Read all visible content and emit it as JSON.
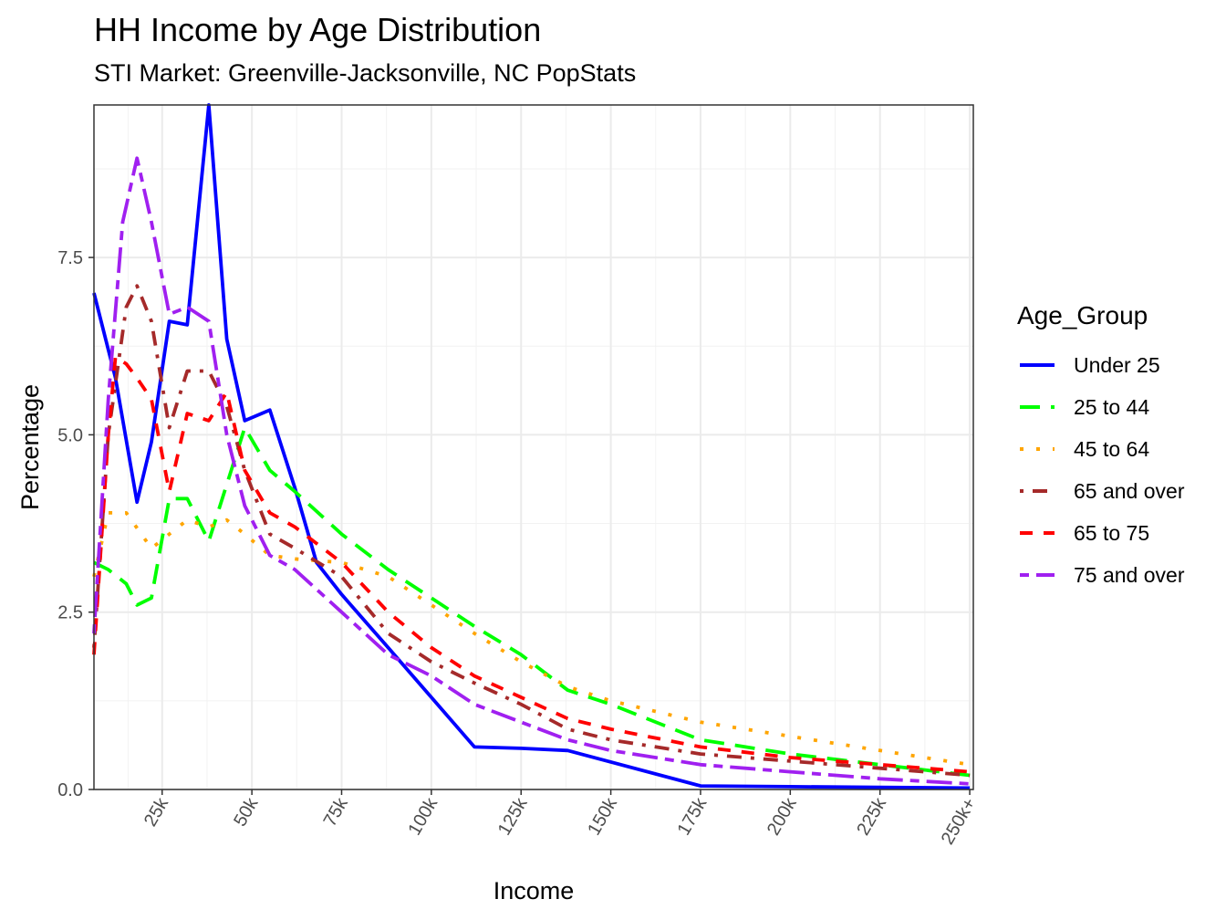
{
  "title": "HH Income by Age Distribution",
  "subtitle": "STI Market: Greenville-Jacksonville, NC PopStats",
  "chart_data": {
    "type": "line",
    "title": "HH Income by Age Distribution",
    "subtitle": "STI Market: Greenville-Jacksonville, NC PopStats",
    "xlabel": "Income",
    "ylabel": "Percentage",
    "x_ticks": [
      "25k",
      "50k",
      "75k",
      "100k",
      "125k",
      "150k",
      "175k",
      "200k",
      "225k",
      "250k+"
    ],
    "x_tick_values": [
      25,
      50,
      75,
      100,
      125,
      150,
      175,
      200,
      225,
      250
    ],
    "y_ticks": [
      "0.0",
      "2.5",
      "5.0",
      "7.5"
    ],
    "y_tick_values": [
      0,
      2.5,
      5,
      7.5
    ],
    "xlim": [
      6,
      251
    ],
    "ylim": [
      0,
      9.65
    ],
    "grid": true,
    "legend_title": "Age_Group",
    "legend_position": "right",
    "series": [
      {
        "name": "Under 25",
        "color": "#0000ff",
        "dash": "solid",
        "x": [
          6,
          12,
          18,
          22,
          27,
          32,
          38,
          43,
          48,
          55,
          62,
          68,
          75,
          88,
          112,
          125,
          138,
          175,
          200,
          225,
          250
        ],
        "y": [
          7.0,
          5.8,
          4.05,
          4.9,
          6.6,
          6.55,
          9.65,
          6.35,
          5.2,
          5.35,
          4.25,
          3.2,
          2.75,
          2.0,
          0.6,
          0.58,
          0.55,
          0.05,
          0.04,
          0.03,
          0.02
        ]
      },
      {
        "name": "25 to 44",
        "color": "#00ff00",
        "dash": "longdash",
        "x": [
          6,
          10,
          15,
          18,
          22,
          27,
          32,
          38,
          43,
          48,
          55,
          62,
          75,
          88,
          100,
          112,
          125,
          138,
          150,
          175,
          200,
          225,
          250
        ],
        "y": [
          3.2,
          3.1,
          2.9,
          2.6,
          2.7,
          4.1,
          4.1,
          3.5,
          4.3,
          5.1,
          4.5,
          4.2,
          3.6,
          3.1,
          2.7,
          2.3,
          1.9,
          1.4,
          1.2,
          0.7,
          0.5,
          0.35,
          0.2
        ]
      },
      {
        "name": "45 to 64",
        "color": "#ffa500",
        "dash": "dotted",
        "x": [
          6,
          10,
          15,
          22,
          27,
          32,
          38,
          43,
          48,
          55,
          62,
          75,
          88,
          100,
          112,
          125,
          138,
          150,
          175,
          200,
          225,
          250
        ],
        "y": [
          3.0,
          3.9,
          3.9,
          3.4,
          3.6,
          3.8,
          3.7,
          3.8,
          3.6,
          3.3,
          3.25,
          3.2,
          3.0,
          2.6,
          2.2,
          1.8,
          1.45,
          1.25,
          0.95,
          0.75,
          0.55,
          0.35
        ]
      },
      {
        "name": "65 and over",
        "color": "#a52a2a",
        "dash": "dotdash",
        "x": [
          6,
          10,
          15,
          18,
          22,
          27,
          32,
          38,
          43,
          48,
          55,
          62,
          75,
          88,
          100,
          112,
          125,
          138,
          150,
          175,
          200,
          225,
          250
        ],
        "y": [
          2.0,
          5.0,
          6.8,
          7.1,
          6.6,
          5.1,
          5.9,
          5.9,
          5.4,
          4.5,
          3.6,
          3.4,
          3.0,
          2.2,
          1.8,
          1.5,
          1.2,
          0.85,
          0.7,
          0.5,
          0.4,
          0.3,
          0.2
        ]
      },
      {
        "name": "65 to 75",
        "color": "#ff0000",
        "dash": "dashed",
        "x": [
          6,
          10,
          12,
          15,
          18,
          22,
          27,
          32,
          38,
          43,
          48,
          55,
          62,
          75,
          88,
          100,
          112,
          125,
          138,
          150,
          175,
          200,
          225,
          250
        ],
        "y": [
          1.9,
          5.0,
          6.1,
          6.0,
          5.8,
          5.5,
          4.2,
          5.3,
          5.2,
          5.6,
          4.5,
          3.9,
          3.7,
          3.2,
          2.5,
          2.0,
          1.6,
          1.3,
          1.0,
          0.85,
          0.6,
          0.45,
          0.35,
          0.25
        ]
      },
      {
        "name": "75 and over",
        "color": "#a020f0",
        "dash": "twodash",
        "x": [
          6,
          10,
          14,
          18,
          22,
          27,
          32,
          38,
          43,
          48,
          55,
          62,
          75,
          88,
          100,
          112,
          125,
          138,
          150,
          175,
          200,
          225,
          250
        ],
        "y": [
          2.2,
          5.5,
          8.0,
          8.9,
          8.0,
          6.7,
          6.8,
          6.6,
          5.0,
          4.0,
          3.3,
          3.1,
          2.5,
          1.9,
          1.6,
          1.2,
          0.95,
          0.7,
          0.55,
          0.35,
          0.25,
          0.15,
          0.08
        ]
      }
    ]
  }
}
